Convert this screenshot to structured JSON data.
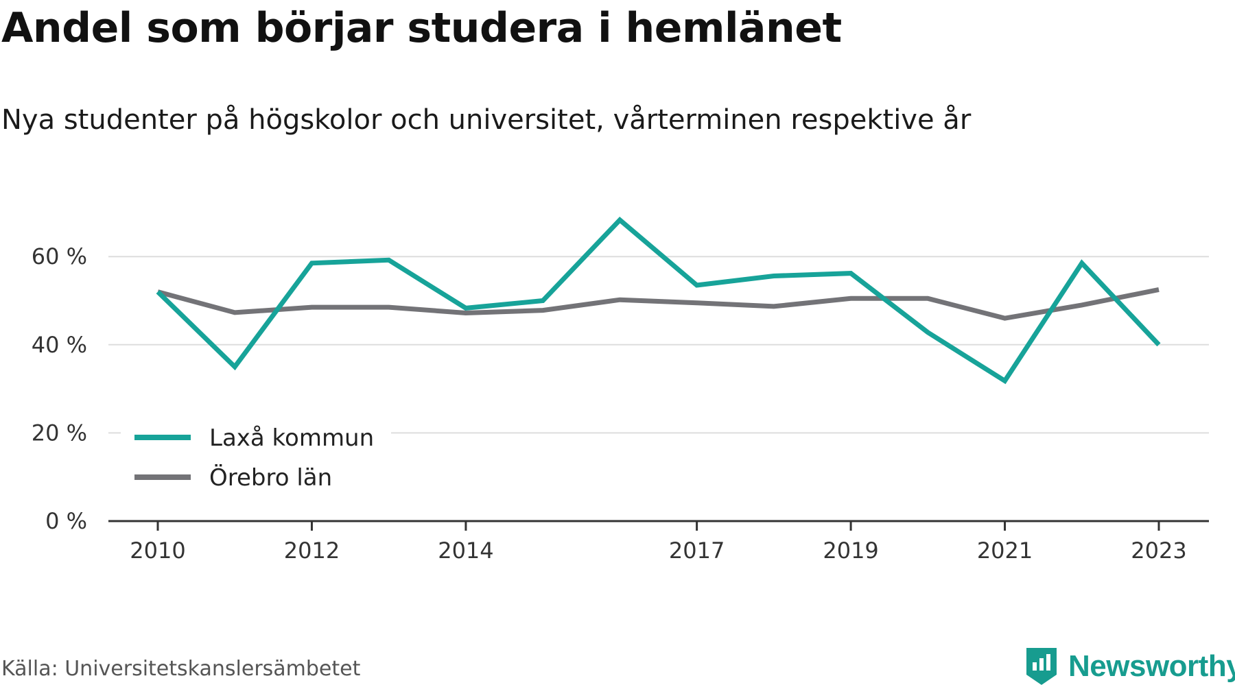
{
  "title": "Andel som börjar studera i hemlänet",
  "subtitle": "Nya studenter på högskolor och universitet, vårterminen respektive år",
  "source": "Källa: Universitetskanslersämbetet",
  "brand": {
    "name": "Newsworthy",
    "icon": "newsworthy-logo-icon",
    "color": "#179c8f"
  },
  "chart_data": {
    "type": "line",
    "x": [
      2010,
      2011,
      2012,
      2013,
      2014,
      2015,
      2016,
      2017,
      2018,
      2019,
      2020,
      2021,
      2022,
      2023
    ],
    "x_tick_labels": [
      "2010",
      "2012",
      "2014",
      "2017",
      "2019",
      "2021",
      "2023"
    ],
    "y_ticks": [
      0,
      20,
      40,
      60
    ],
    "y_tick_labels": [
      "0 %",
      "20 %",
      "40 %",
      "60 %"
    ],
    "ylim": [
      0,
      70
    ],
    "grid": true,
    "legend_position": "bottom-left",
    "series": [
      {
        "name": "Laxå kommun",
        "color": "#17a399",
        "values": [
          52,
          35,
          58.5,
          59.2,
          48.3,
          50,
          68.3,
          53.5,
          55.6,
          56.2,
          42.8,
          31.8,
          58.5,
          40
        ]
      },
      {
        "name": "Örebro län",
        "color": "#737377",
        "values": [
          52,
          47.3,
          48.5,
          48.5,
          47.2,
          47.8,
          50.2,
          49.5,
          48.7,
          50.5,
          50.5,
          46,
          49,
          52.5
        ]
      }
    ]
  }
}
